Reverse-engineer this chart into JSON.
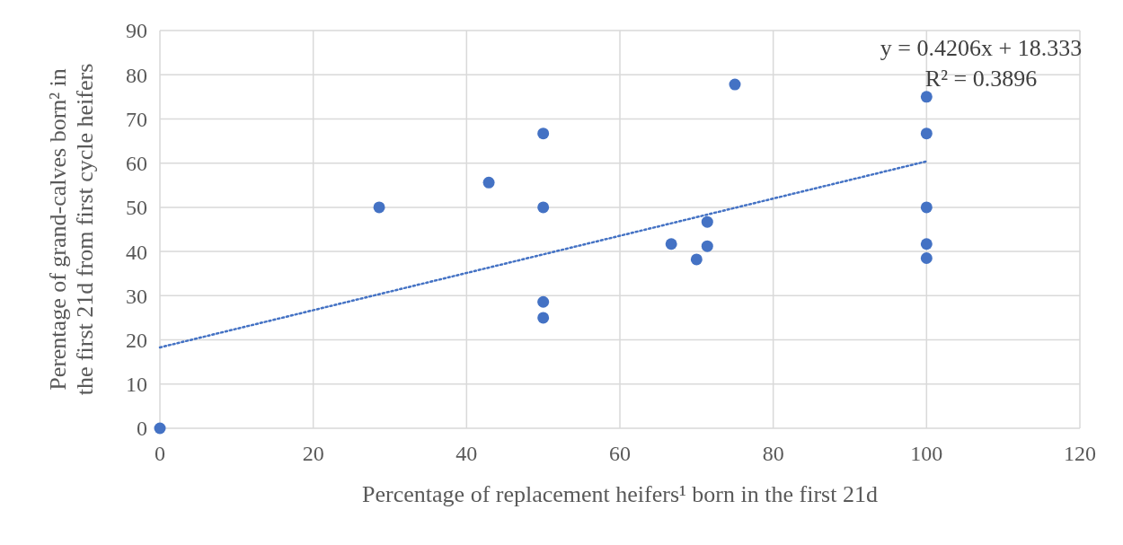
{
  "chart_data": {
    "type": "scatter",
    "xlabel": "Percentage of replacement heifers¹ born in the first 21d",
    "ylabel": "Perentage of grand-calves born² in\nthe first 21d from first cycle heifers",
    "series": [
      {
        "color": "#4472c4",
        "marker": "circle",
        "x": [
          0,
          28.6,
          42.9,
          50,
          50,
          50,
          50,
          66.7,
          70,
          71.4,
          71.4,
          75,
          100,
          100,
          100,
          100,
          100
        ],
        "values": [
          0,
          50,
          55.6,
          66.7,
          50,
          28.6,
          25,
          41.7,
          38.2,
          46.7,
          41.2,
          77.8,
          75,
          66.7,
          50,
          41.7,
          38.5
        ]
      },
      {
        "type": "line",
        "color": "#4472c4",
        "line_style": "dotted",
        "x": [
          0,
          100
        ],
        "values": [
          18.3,
          60.4
        ]
      }
    ],
    "annotations": [
      "y = 0.4206x + 18.333",
      "R² = 0.3896"
    ],
    "xlim": [
      0,
      120
    ],
    "xticks": [
      0,
      20,
      40,
      60,
      80,
      100,
      120
    ],
    "ylim": [
      0,
      90
    ],
    "yticks": [
      0,
      10,
      20,
      30,
      40,
      50,
      60,
      70,
      80,
      90
    ],
    "grid": true
  }
}
